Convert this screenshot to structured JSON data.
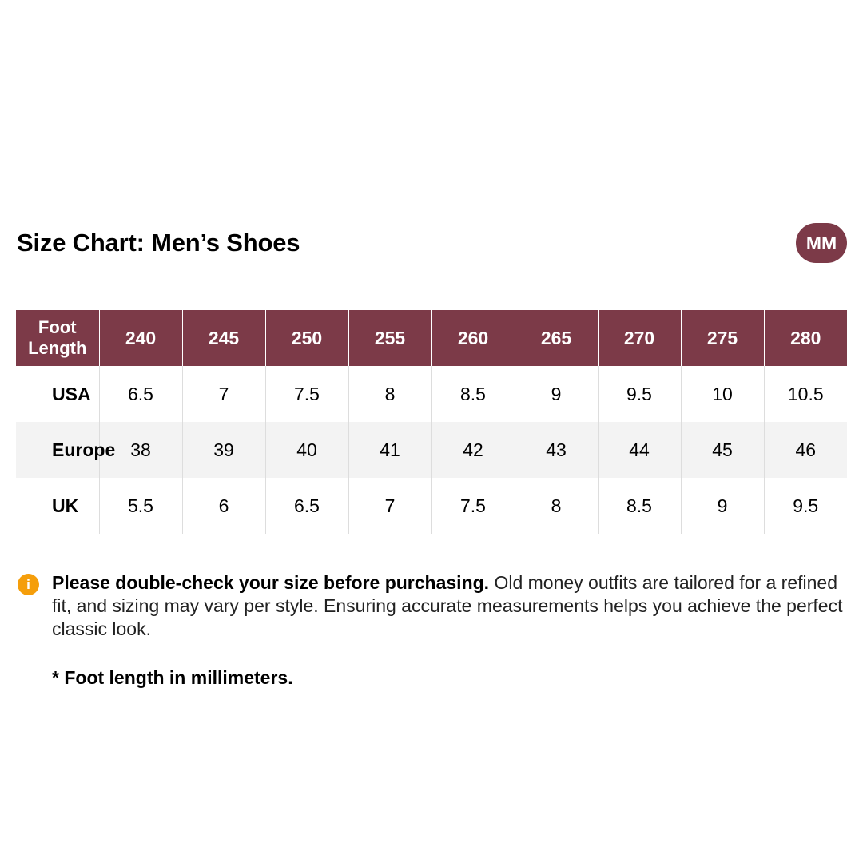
{
  "title": "Size Chart: Men’s Shoes",
  "unit_badge": "MM",
  "table": {
    "header": [
      "Foot Length",
      "240",
      "245",
      "250",
      "255",
      "260",
      "265",
      "270",
      "275",
      "280"
    ],
    "rows": [
      {
        "label": "USA",
        "values": [
          "6.5",
          "7",
          "7.5",
          "8",
          "8.5",
          "9",
          "9.5",
          "10",
          "10.5"
        ]
      },
      {
        "label": "Europe",
        "values": [
          "38",
          "39",
          "40",
          "41",
          "42",
          "43",
          "44",
          "45",
          "46"
        ]
      },
      {
        "label": "UK",
        "values": [
          "5.5",
          "6",
          "6.5",
          "7",
          "7.5",
          "8",
          "8.5",
          "9",
          "9.5"
        ]
      }
    ]
  },
  "note": {
    "icon": "info-icon",
    "bold": "Please double-check your size before purchasing.",
    "text": " Old money outfits are tailored for a refined fit, and sizing may vary per style. Ensuring accurate measurements helps you achieve the perfect classic look."
  },
  "footnote": "* Foot length in millimeters.",
  "colors": {
    "header_bg": "#7c3a48",
    "badge_bg": "#7c3a48",
    "info_icon": "#f59e0b",
    "alt_row_bg": "#f3f3f3"
  }
}
